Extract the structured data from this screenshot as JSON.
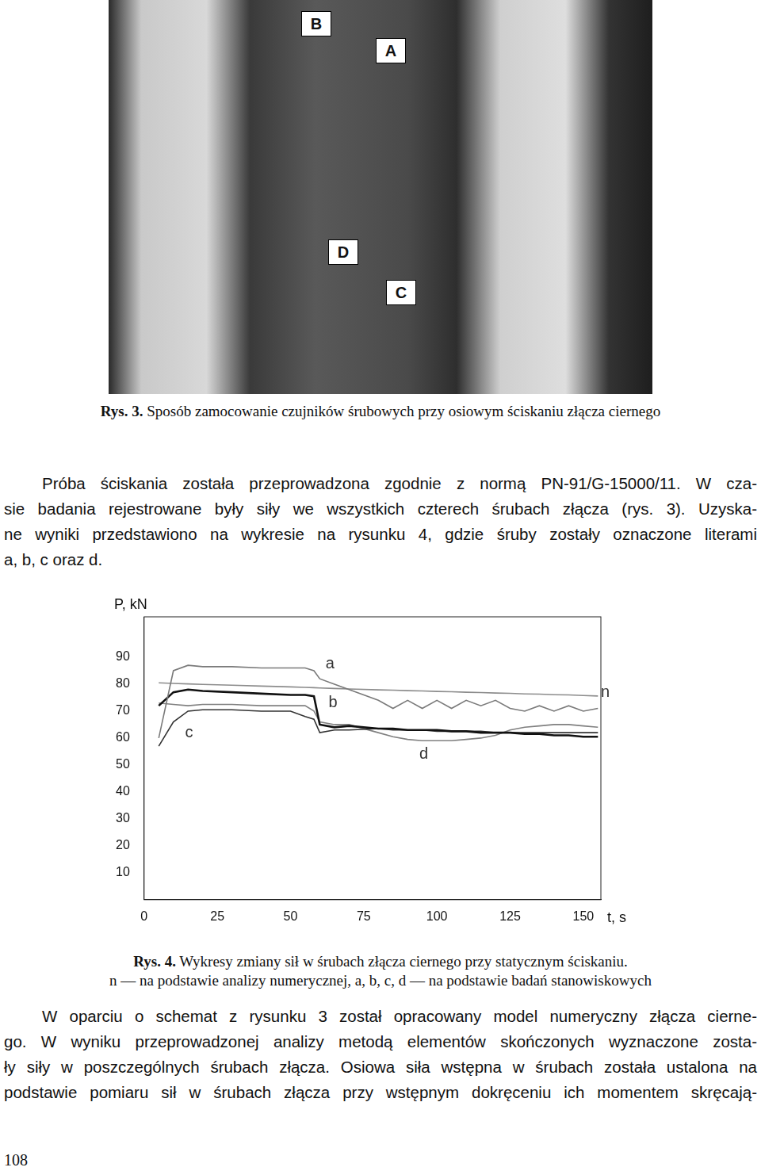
{
  "photo": {
    "markers": [
      "B",
      "A",
      "D",
      "C"
    ]
  },
  "figure3_caption": {
    "number": "Rys. 3.",
    "text": "Sposób zamocowanie czujników śrubowych przy osiowym ściskaniu złącza ciernego"
  },
  "paragraph1": [
    "Próba ściskania została przeprowadzona zgodnie z normą PN-91/G-15000/11. W cza-",
    "sie badania rejestrowane były siły we wszystkich czterech śrubach złącza (rys. 3). Uzyska-",
    "ne wyniki przedstawiono na wykresie na rysunku 4, gdzie śruby zostały oznaczone literami",
    "a, b, c oraz d."
  ],
  "chart_data": {
    "type": "line",
    "x_label": "t, s",
    "y_label": "P, kN",
    "x": [
      5,
      10,
      15,
      20,
      30,
      40,
      50,
      55,
      58,
      60,
      65,
      70,
      80,
      85,
      90,
      95,
      100,
      105,
      110,
      115,
      120,
      125,
      130,
      135,
      140,
      145,
      150,
      155
    ],
    "series": [
      {
        "name": "a",
        "color": "#7a7a7a",
        "values": [
          60,
          85,
          87,
          86.5,
          86.5,
          86,
          86,
          86,
          85,
          82,
          80,
          78,
          74,
          71,
          74,
          71,
          74,
          71,
          74,
          72,
          74,
          71,
          70,
          72,
          70,
          72,
          70,
          71
        ]
      },
      {
        "name": "b",
        "color": "#111111",
        "values": [
          72,
          77,
          78,
          77.5,
          77,
          76.5,
          76,
          76,
          75.5,
          65,
          64,
          64.5,
          63.5,
          63.5,
          63,
          63,
          63,
          62.5,
          62.5,
          62,
          62,
          62,
          61.5,
          61.5,
          61,
          61,
          60.5,
          60.5
        ]
      },
      {
        "name": "c",
        "color": "#333333",
        "values": [
          57,
          66,
          70,
          70.5,
          70.5,
          70,
          70,
          68,
          67,
          62,
          63,
          63,
          63.5,
          63,
          63,
          63,
          62.5,
          62.5,
          62.5,
          62.5,
          62,
          62,
          62,
          62,
          62,
          62,
          62,
          62
        ]
      },
      {
        "name": "d",
        "color": "#808080",
        "values": [
          73,
          72.5,
          72,
          72.5,
          72.5,
          72,
          72,
          72,
          70,
          66,
          65,
          65,
          62,
          60.5,
          59.5,
          59,
          59,
          59,
          59.5,
          60,
          61,
          63,
          64,
          64.5,
          65,
          65,
          64.5,
          64
        ]
      },
      {
        "name": "n",
        "color": "#8c8c8c",
        "values": [
          80.5,
          80.3,
          80.1,
          79.9,
          79.6,
          79.3,
          79,
          78.8,
          78.7,
          78.6,
          78.4,
          78.2,
          77.9,
          77.8,
          77.6,
          77.5,
          77.3,
          77.2,
          77,
          76.9,
          76.7,
          76.6,
          76.4,
          76.3,
          76.1,
          76,
          75.8,
          75.6
        ]
      }
    ],
    "annotations": [
      {
        "text": "a",
        "x": 62,
        "y": 87.5
      },
      {
        "text": "b",
        "x": 63,
        "y": 73
      },
      {
        "text": "c",
        "x": 14,
        "y": 62
      },
      {
        "text": "d",
        "x": 94,
        "y": 54
      },
      {
        "text": "n",
        "x": 156,
        "y": 77
      }
    ],
    "xlim": [
      0,
      156
    ],
    "ylim": [
      0,
      105
    ],
    "xticks": [
      0,
      25,
      50,
      75,
      100,
      125,
      150
    ],
    "yticks": [
      10,
      20,
      30,
      40,
      50,
      60,
      70,
      80,
      90
    ],
    "grid": false
  },
  "figure4_caption": {
    "number": "Rys. 4.",
    "text": "Wykresy zmiany sił w śrubach złącza ciernego przy statycznym ściskaniu.",
    "note": "n — na podstawie analizy numerycznej, a, b, c, d — na podstawie badań stanowiskowych"
  },
  "paragraph2": [
    "W oparciu o schemat z rysunku 3 został opracowany model numeryczny złącza cierne-",
    "go. W wyniku przeprowadzonej analizy metodą elementów skończonych wyznaczone zosta-",
    "ły siły w poszczególnych śrubach złącza. Osiowa siła wstępna w śrubach została ustalona na",
    "podstawie pomiaru sił w śrubach złącza przy wstępnym dokręceniu ich momentem skręcają-"
  ],
  "page_number": "108"
}
